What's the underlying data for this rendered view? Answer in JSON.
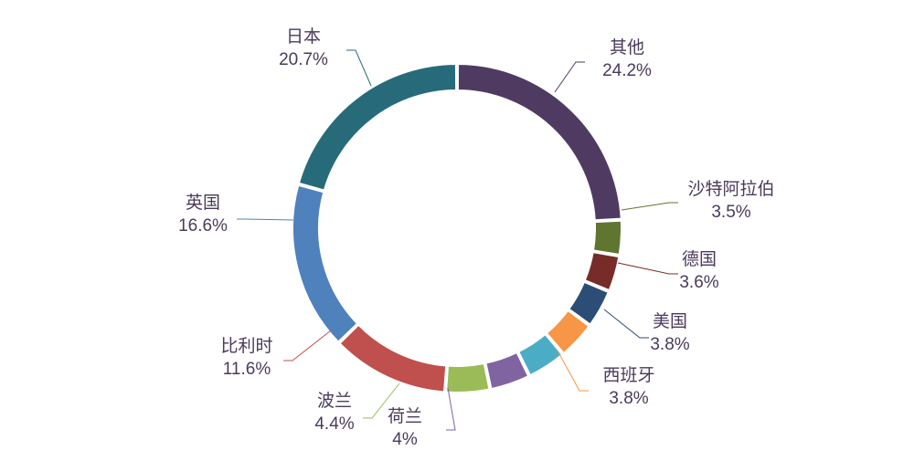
{
  "chart_data": {
    "type": "pie",
    "style": "donut",
    "slices": [
      {
        "name": "其他",
        "value": 24.2,
        "label": "24.2%",
        "color": "#4f3b62"
      },
      {
        "name": "沙特阿拉伯",
        "value": 3.5,
        "label": "3.5%",
        "color": "#5f7530"
      },
      {
        "name": "德国",
        "value": 3.6,
        "label": "3.6%",
        "color": "#772c2a"
      },
      {
        "name": "美国",
        "value": 3.8,
        "label": "3.8%",
        "color": "#2c4d75"
      },
      {
        "name": "西班牙",
        "value": 3.8,
        "label": "3.8%",
        "color": "#f79646"
      },
      {
        "name": "荷兰",
        "value": 4.0,
        "label": "4%",
        "color": "#4bacc6"
      },
      {
        "name": "波兰",
        "value": 4.4,
        "label": "4.4%",
        "color": "#8064a2"
      },
      {
        "name": "比利时",
        "value": 11.6,
        "label": "11.6%",
        "color": "#9bbb59"
      },
      {
        "name": "英国",
        "value": 16.6,
        "label": "16.6%",
        "color": "#c0504d"
      },
      {
        "name": "日本",
        "value": 20.7,
        "label": "20.7%",
        "color": "#4f81bd"
      }
    ],
    "label_color": "#4a3a5c",
    "legend": "none"
  }
}
